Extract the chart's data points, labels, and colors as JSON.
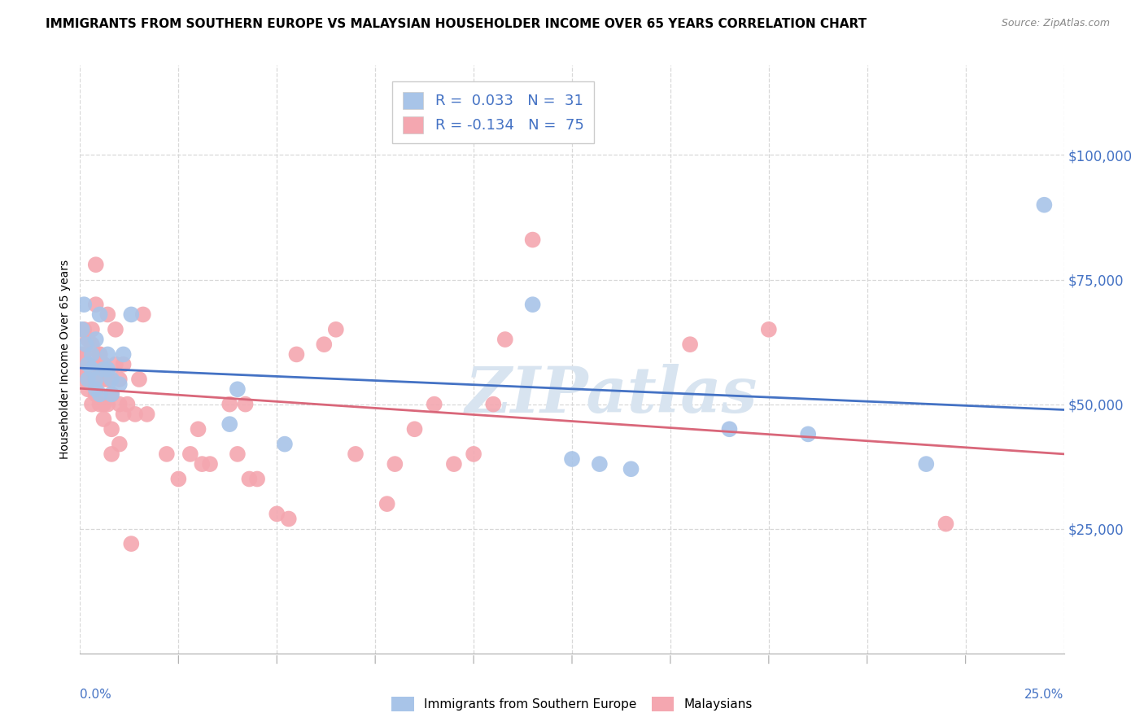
{
  "title": "IMMIGRANTS FROM SOUTHERN EUROPE VS MALAYSIAN HOUSEHOLDER INCOME OVER 65 YEARS CORRELATION CHART",
  "source": "Source: ZipAtlas.com",
  "ylabel": "Householder Income Over 65 years",
  "right_ytick_labels": [
    "$25,000",
    "$50,000",
    "$75,000",
    "$100,000"
  ],
  "right_ytick_values": [
    25000,
    50000,
    75000,
    100000
  ],
  "ylim": [
    0,
    118000
  ],
  "xlim": [
    0.0,
    0.25
  ],
  "legend_entries": [
    {
      "label": "R =  0.033   N =  31",
      "color": "#a8c4e8"
    },
    {
      "label": "R = -0.134   N =  75",
      "color": "#f4a7b0"
    }
  ],
  "blue_scatter_x": [
    0.0005,
    0.001,
    0.0015,
    0.002,
    0.002,
    0.003,
    0.003,
    0.004,
    0.004,
    0.004,
    0.005,
    0.005,
    0.006,
    0.007,
    0.007,
    0.008,
    0.008,
    0.01,
    0.011,
    0.013,
    0.038,
    0.04,
    0.052,
    0.115,
    0.125,
    0.132,
    0.14,
    0.165,
    0.185,
    0.215,
    0.245
  ],
  "blue_scatter_y": [
    65000,
    70000,
    62000,
    58000,
    55000,
    60000,
    57000,
    53000,
    63000,
    55000,
    68000,
    52000,
    57000,
    60000,
    57000,
    55000,
    52000,
    54000,
    60000,
    68000,
    46000,
    53000,
    42000,
    70000,
    39000,
    38000,
    37000,
    45000,
    44000,
    38000,
    90000
  ],
  "pink_scatter_x": [
    0.0003,
    0.0005,
    0.001,
    0.001,
    0.001,
    0.002,
    0.002,
    0.002,
    0.002,
    0.003,
    0.003,
    0.003,
    0.003,
    0.004,
    0.004,
    0.004,
    0.004,
    0.004,
    0.005,
    0.005,
    0.005,
    0.005,
    0.005,
    0.006,
    0.006,
    0.006,
    0.006,
    0.007,
    0.007,
    0.007,
    0.008,
    0.008,
    0.008,
    0.009,
    0.009,
    0.01,
    0.01,
    0.01,
    0.011,
    0.011,
    0.012,
    0.013,
    0.014,
    0.015,
    0.016,
    0.017,
    0.022,
    0.025,
    0.028,
    0.03,
    0.031,
    0.033,
    0.038,
    0.04,
    0.042,
    0.043,
    0.045,
    0.05,
    0.053,
    0.055,
    0.062,
    0.065,
    0.07,
    0.078,
    0.08,
    0.085,
    0.09,
    0.095,
    0.1,
    0.105,
    0.108,
    0.115,
    0.155,
    0.175,
    0.22
  ],
  "pink_scatter_y": [
    60000,
    57000,
    55000,
    65000,
    60000,
    57000,
    53000,
    63000,
    58000,
    55000,
    50000,
    65000,
    62000,
    58000,
    55000,
    52000,
    78000,
    70000,
    60000,
    57000,
    50000,
    60000,
    55000,
    50000,
    47000,
    58000,
    55000,
    50000,
    68000,
    55000,
    45000,
    52000,
    40000,
    65000,
    58000,
    50000,
    55000,
    42000,
    58000,
    48000,
    50000,
    22000,
    48000,
    55000,
    68000,
    48000,
    40000,
    35000,
    40000,
    45000,
    38000,
    38000,
    50000,
    40000,
    50000,
    35000,
    35000,
    28000,
    27000,
    60000,
    62000,
    65000,
    40000,
    30000,
    38000,
    45000,
    50000,
    38000,
    40000,
    50000,
    63000,
    83000,
    62000,
    65000,
    26000
  ],
  "blue_line_color": "#4472c4",
  "pink_line_color": "#d9677a",
  "blue_scatter_color": "#a8c4e8",
  "pink_scatter_color": "#f4a7b0",
  "background_color": "#ffffff",
  "grid_color": "#d8d8d8",
  "watermark": "ZIPatlas",
  "watermark_color": "#d8e4f0",
  "title_fontsize": 11,
  "source_fontsize": 9,
  "bottom_legend_labels": [
    "Immigrants from Southern Europe",
    "Malaysians"
  ]
}
